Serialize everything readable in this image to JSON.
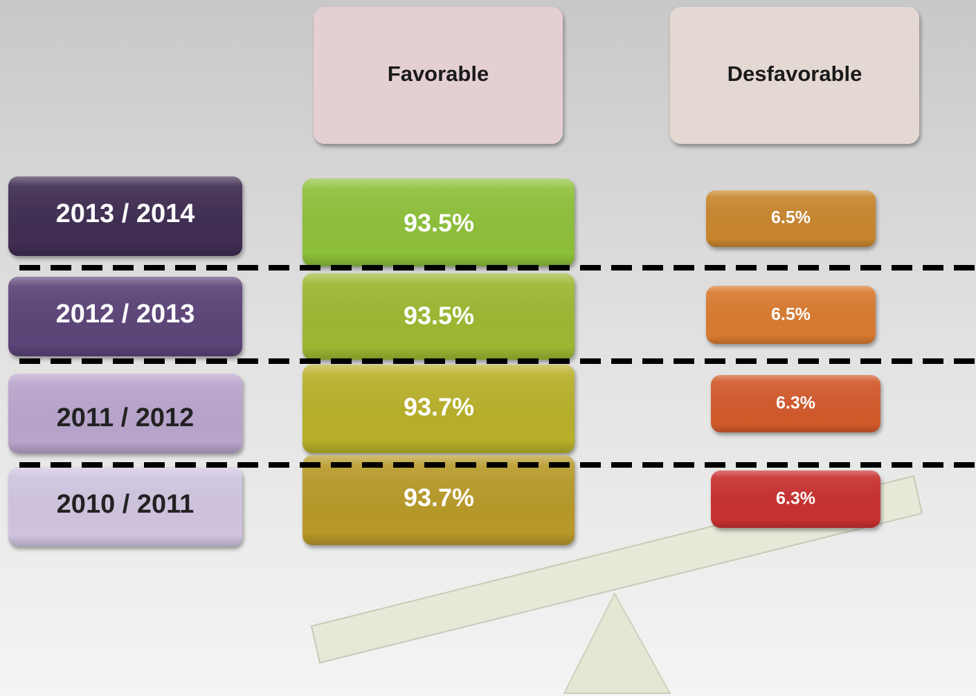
{
  "header": {
    "favorable": "Favorable",
    "unfavorable": "Desfavorable"
  },
  "rows": [
    {
      "period": "2013 / 2014",
      "favorable": "93.5%",
      "unfavorable": "6.5%"
    },
    {
      "period": "2012 / 2013",
      "favorable": "93.5%",
      "unfavorable": "6.5%"
    },
    {
      "period": "2011 / 2012",
      "favorable": "93.7%",
      "unfavorable": "6.3%"
    },
    {
      "period": "2010 / 2011",
      "favorable": "93.7%",
      "unfavorable": "6.3%"
    }
  ]
}
